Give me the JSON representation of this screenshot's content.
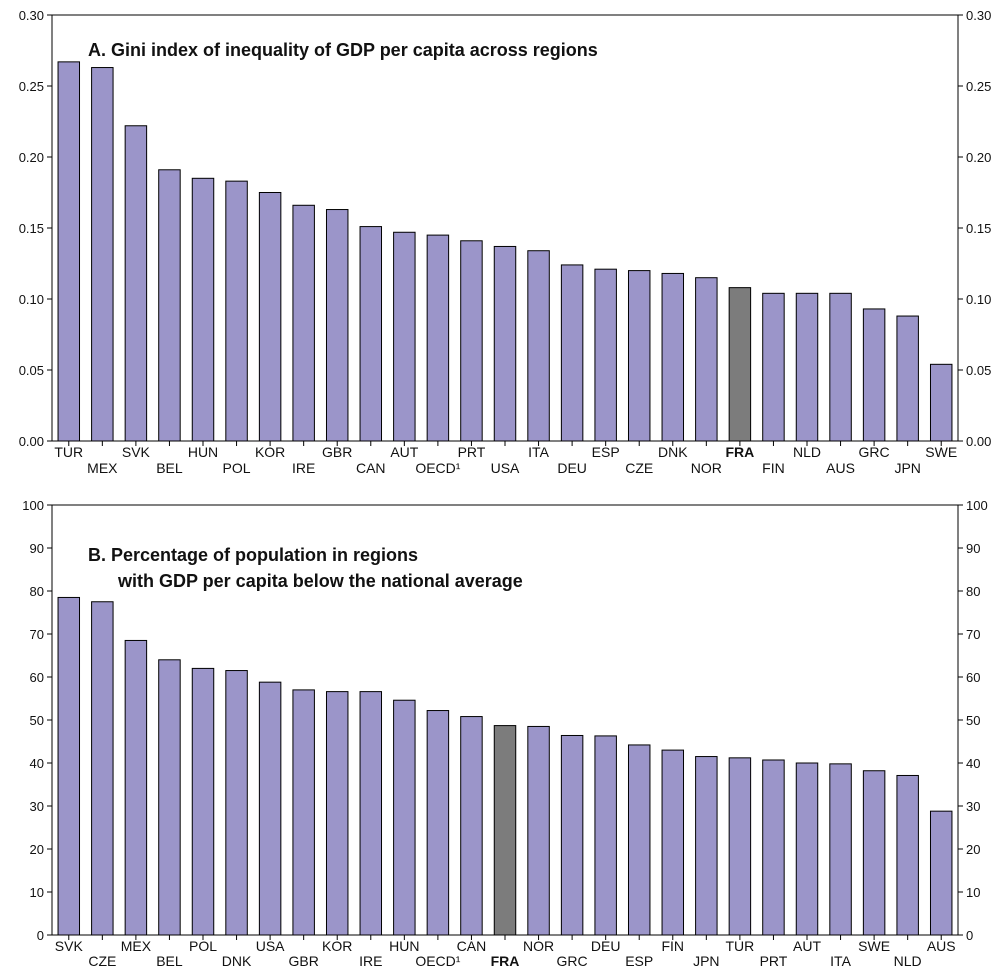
{
  "chart_data": [
    {
      "type": "bar",
      "title": "A. Gini index of inequality of GDP per capita across regions",
      "categories": [
        "TUR",
        "MEX",
        "SVK",
        "BEL",
        "HUN",
        "POL",
        "KOR",
        "IRE",
        "GBR",
        "CAN",
        "AUT",
        "OECD¹",
        "PRT",
        "USA",
        "ITA",
        "DEU",
        "ESP",
        "CZE",
        "DNK",
        "NOR",
        "FRA",
        "FIN",
        "NLD",
        "AUS",
        "GRC",
        "JPN",
        "SWE"
      ],
      "values": [
        0.267,
        0.263,
        0.222,
        0.191,
        0.185,
        0.183,
        0.175,
        0.166,
        0.163,
        0.151,
        0.147,
        0.145,
        0.141,
        0.137,
        0.134,
        0.124,
        0.121,
        0.12,
        0.118,
        0.115,
        0.108,
        0.104,
        0.104,
        0.104,
        0.093,
        0.088,
        0.054
      ],
      "highlight": "FRA",
      "ylim": [
        0,
        0.3
      ],
      "yticks": [
        "0.00",
        "0.05",
        "0.10",
        "0.15",
        "0.20",
        "0.25",
        "0.30"
      ],
      "bar_color": "#9b95c9",
      "highlight_color": "#7c7c7c",
      "xlabel": "",
      "ylabel": ""
    },
    {
      "type": "bar",
      "title": [
        "B. Percentage of population in regions",
        "with GDP per capita below the national average"
      ],
      "categories": [
        "SVK",
        "CZE",
        "MEX",
        "BEL",
        "POL",
        "DNK",
        "USA",
        "GBR",
        "KOR",
        "IRE",
        "HUN",
        "OECD¹",
        "CAN",
        "FRA",
        "NOR",
        "GRC",
        "DEU",
        "ESP",
        "FIN",
        "JPN",
        "TUR",
        "PRT",
        "AUT",
        "ITA",
        "SWE",
        "NLD",
        "AUS"
      ],
      "values": [
        78.5,
        77.5,
        68.5,
        64.0,
        62.0,
        61.5,
        58.8,
        57.0,
        56.6,
        56.6,
        54.6,
        52.2,
        50.8,
        48.7,
        48.5,
        46.4,
        46.3,
        44.2,
        43.0,
        41.5,
        41.2,
        40.7,
        40.0,
        39.8,
        38.2,
        37.1,
        28.8
      ],
      "highlight": "FRA",
      "ylim": [
        0,
        100
      ],
      "yticks": [
        "0",
        "10",
        "20",
        "30",
        "40",
        "50",
        "60",
        "70",
        "80",
        "90",
        "100"
      ],
      "bar_color": "#9b95c9",
      "highlight_color": "#7c7c7c",
      "xlabel": "",
      "ylabel": ""
    }
  ]
}
